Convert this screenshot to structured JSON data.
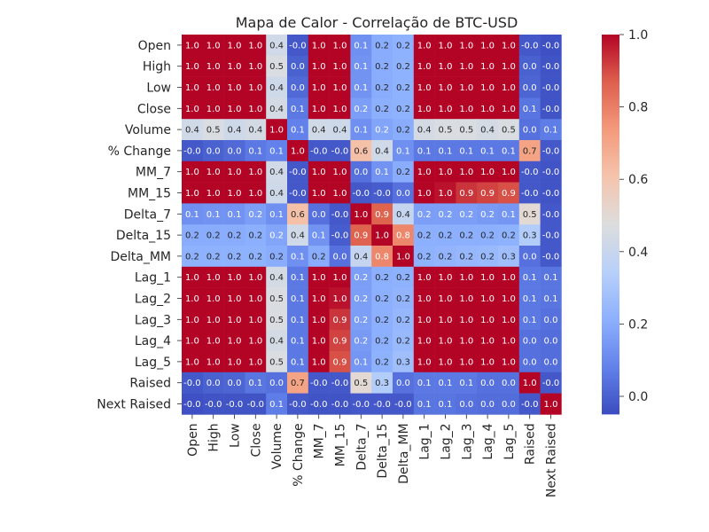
{
  "chart_data": {
    "type": "heatmap",
    "title": "Mapa de Calor - Correlação de BTC-USD",
    "variables": [
      "Open",
      "High",
      "Low",
      "Close",
      "Volume",
      "% Change",
      "MM_7",
      "MM_15",
      "Delta_7",
      "Delta_15",
      "Delta_MM",
      "Lag_1",
      "Lag_2",
      "Lag_3",
      "Lag_4",
      "Lag_5",
      "Raised",
      "Next Raised"
    ],
    "cell_labels": [
      [
        "1.0",
        "1.0",
        "1.0",
        "1.0",
        "0.4",
        "-0.0",
        "1.0",
        "1.0",
        "0.1",
        "0.2",
        "0.2",
        "1.0",
        "1.0",
        "1.0",
        "1.0",
        "1.0",
        "-0.0",
        "-0.0"
      ],
      [
        "1.0",
        "1.0",
        "1.0",
        "1.0",
        "0.5",
        "0.0",
        "1.0",
        "1.0",
        "0.1",
        "0.2",
        "0.2",
        "1.0",
        "1.0",
        "1.0",
        "1.0",
        "1.0",
        "0.0",
        "-0.0"
      ],
      [
        "1.0",
        "1.0",
        "1.0",
        "1.0",
        "0.4",
        "0.0",
        "1.0",
        "1.0",
        "0.1",
        "0.2",
        "0.2",
        "1.0",
        "1.0",
        "1.0",
        "1.0",
        "1.0",
        "0.0",
        "-0.0"
      ],
      [
        "1.0",
        "1.0",
        "1.0",
        "1.0",
        "0.4",
        "0.1",
        "1.0",
        "1.0",
        "0.2",
        "0.2",
        "0.2",
        "1.0",
        "1.0",
        "1.0",
        "1.0",
        "1.0",
        "0.1",
        "-0.0"
      ],
      [
        "0.4",
        "0.5",
        "0.4",
        "0.4",
        "1.0",
        "0.1",
        "0.4",
        "0.4",
        "0.1",
        "0.2",
        "0.2",
        "0.4",
        "0.5",
        "0.5",
        "0.4",
        "0.5",
        "0.0",
        "0.1"
      ],
      [
        "-0.0",
        "0.0",
        "0.0",
        "0.1",
        "0.1",
        "1.0",
        "-0.0",
        "-0.0",
        "0.6",
        "0.4",
        "0.1",
        "0.1",
        "0.1",
        "0.1",
        "0.1",
        "0.1",
        "0.7",
        "-0.0"
      ],
      [
        "1.0",
        "1.0",
        "1.0",
        "1.0",
        "0.4",
        "-0.0",
        "1.0",
        "1.0",
        "0.0",
        "0.1",
        "0.2",
        "1.0",
        "1.0",
        "1.0",
        "1.0",
        "1.0",
        "-0.0",
        "-0.0"
      ],
      [
        "1.0",
        "1.0",
        "1.0",
        "1.0",
        "0.4",
        "-0.0",
        "1.0",
        "1.0",
        "-0.0",
        "-0.0",
        "0.0",
        "1.0",
        "1.0",
        "0.9",
        "0.9",
        "0.9",
        "-0.0",
        "-0.0"
      ],
      [
        "0.1",
        "0.1",
        "0.1",
        "0.2",
        "0.1",
        "0.6",
        "0.0",
        "-0.0",
        "1.0",
        "0.9",
        "0.4",
        "0.2",
        "0.2",
        "0.2",
        "0.2",
        "0.1",
        "0.5",
        "-0.0"
      ],
      [
        "0.2",
        "0.2",
        "0.2",
        "0.2",
        "0.2",
        "0.4",
        "0.1",
        "-0.0",
        "0.9",
        "1.0",
        "0.8",
        "0.2",
        "0.2",
        "0.2",
        "0.2",
        "0.2",
        "0.3",
        "-0.0"
      ],
      [
        "0.2",
        "0.2",
        "0.2",
        "0.2",
        "0.2",
        "0.1",
        "0.2",
        "0.0",
        "0.4",
        "0.8",
        "1.0",
        "0.2",
        "0.2",
        "0.2",
        "0.2",
        "0.3",
        "0.0",
        "-0.0"
      ],
      [
        "1.0",
        "1.0",
        "1.0",
        "1.0",
        "0.4",
        "0.1",
        "1.0",
        "1.0",
        "0.2",
        "0.2",
        "0.2",
        "1.0",
        "1.0",
        "1.0",
        "1.0",
        "1.0",
        "0.1",
        "0.1"
      ],
      [
        "1.0",
        "1.0",
        "1.0",
        "1.0",
        "0.5",
        "0.1",
        "1.0",
        "1.0",
        "0.2",
        "0.2",
        "0.2",
        "1.0",
        "1.0",
        "1.0",
        "1.0",
        "1.0",
        "0.1",
        "0.1"
      ],
      [
        "1.0",
        "1.0",
        "1.0",
        "1.0",
        "0.5",
        "0.1",
        "1.0",
        "0.9",
        "0.2",
        "0.2",
        "0.2",
        "1.0",
        "1.0",
        "1.0",
        "1.0",
        "1.0",
        "0.1",
        "0.0"
      ],
      [
        "1.0",
        "1.0",
        "1.0",
        "1.0",
        "0.4",
        "0.1",
        "1.0",
        "0.9",
        "0.2",
        "0.2",
        "0.2",
        "1.0",
        "1.0",
        "1.0",
        "1.0",
        "1.0",
        "0.0",
        "0.0"
      ],
      [
        "1.0",
        "1.0",
        "1.0",
        "1.0",
        "0.5",
        "0.1",
        "1.0",
        "0.9",
        "0.1",
        "0.2",
        "0.3",
        "1.0",
        "1.0",
        "1.0",
        "1.0",
        "1.0",
        "0.0",
        "0.0"
      ],
      [
        "-0.0",
        "0.0",
        "0.0",
        "0.1",
        "0.0",
        "0.7",
        "-0.0",
        "-0.0",
        "0.5",
        "0.3",
        "0.0",
        "0.1",
        "0.1",
        "0.1",
        "0.0",
        "0.0",
        "1.0",
        "-0.0"
      ],
      [
        "-0.0",
        "-0.0",
        "-0.0",
        "-0.0",
        "0.1",
        "-0.0",
        "-0.0",
        "-0.0",
        "-0.0",
        "-0.0",
        "-0.0",
        "0.1",
        "0.1",
        "0.0",
        "0.0",
        "0.0",
        "-0.0",
        "1.0"
      ]
    ],
    "values": [
      [
        1.0,
        1.0,
        1.0,
        1.0,
        0.43,
        -0.02,
        1.0,
        1.0,
        0.12,
        0.2,
        0.22,
        1.0,
        1.0,
        1.0,
        1.0,
        1.0,
        -0.02,
        -0.04
      ],
      [
        1.0,
        1.0,
        1.0,
        1.0,
        0.46,
        0.0,
        1.0,
        1.0,
        0.13,
        0.2,
        0.22,
        1.0,
        1.0,
        1.0,
        1.0,
        1.0,
        0.0,
        -0.03
      ],
      [
        1.0,
        1.0,
        1.0,
        1.0,
        0.42,
        0.02,
        1.0,
        1.0,
        0.13,
        0.2,
        0.22,
        1.0,
        1.0,
        1.0,
        1.0,
        1.0,
        0.01,
        -0.03
      ],
      [
        1.0,
        1.0,
        1.0,
        1.0,
        0.44,
        0.06,
        1.0,
        1.0,
        0.16,
        0.21,
        0.22,
        1.0,
        1.0,
        1.0,
        1.0,
        1.0,
        0.05,
        -0.03
      ],
      [
        0.43,
        0.46,
        0.42,
        0.44,
        1.0,
        0.08,
        0.43,
        0.42,
        0.12,
        0.18,
        0.2,
        0.44,
        0.46,
        0.46,
        0.44,
        0.46,
        0.04,
        0.07
      ],
      [
        -0.02,
        0.0,
        0.02,
        0.06,
        0.08,
        1.0,
        -0.02,
        -0.02,
        0.62,
        0.43,
        0.12,
        0.06,
        0.06,
        0.06,
        0.06,
        0.06,
        0.71,
        -0.02
      ],
      [
        1.0,
        1.0,
        1.0,
        1.0,
        0.43,
        -0.02,
        1.0,
        1.0,
        0.04,
        0.13,
        0.2,
        1.0,
        1.0,
        1.0,
        1.0,
        1.0,
        -0.02,
        -0.03
      ],
      [
        1.0,
        1.0,
        1.0,
        1.0,
        0.42,
        -0.02,
        1.0,
        1.0,
        -0.02,
        -0.01,
        0.04,
        1.0,
        0.98,
        0.93,
        0.91,
        0.89,
        -0.02,
        -0.03
      ],
      [
        0.12,
        0.13,
        0.13,
        0.16,
        0.12,
        0.62,
        0.04,
        -0.02,
        1.0,
        0.86,
        0.39,
        0.16,
        0.16,
        0.16,
        0.15,
        0.14,
        0.5,
        -0.02
      ],
      [
        0.2,
        0.2,
        0.2,
        0.21,
        0.18,
        0.43,
        0.13,
        -0.01,
        0.86,
        1.0,
        0.78,
        0.21,
        0.21,
        0.21,
        0.21,
        0.22,
        0.33,
        -0.02
      ],
      [
        0.22,
        0.22,
        0.22,
        0.22,
        0.2,
        0.12,
        0.2,
        0.04,
        0.39,
        0.78,
        1.0,
        0.22,
        0.23,
        0.24,
        0.25,
        0.27,
        0.04,
        -0.02
      ],
      [
        1.0,
        1.0,
        1.0,
        1.0,
        0.44,
        0.06,
        1.0,
        1.0,
        0.16,
        0.21,
        0.22,
        1.0,
        1.0,
        1.0,
        1.0,
        1.0,
        0.06,
        0.05
      ],
      [
        1.0,
        1.0,
        1.0,
        1.0,
        0.46,
        0.06,
        1.0,
        0.98,
        0.16,
        0.21,
        0.23,
        1.0,
        1.0,
        1.0,
        1.0,
        1.0,
        0.06,
        0.05
      ],
      [
        1.0,
        1.0,
        1.0,
        1.0,
        0.46,
        0.06,
        1.0,
        0.93,
        0.16,
        0.21,
        0.24,
        1.0,
        1.0,
        1.0,
        1.0,
        1.0,
        0.06,
        0.04
      ],
      [
        1.0,
        1.0,
        1.0,
        1.0,
        0.44,
        0.06,
        1.0,
        0.91,
        0.15,
        0.21,
        0.25,
        1.0,
        1.0,
        1.0,
        1.0,
        1.0,
        0.04,
        0.03
      ],
      [
        1.0,
        1.0,
        1.0,
        1.0,
        0.46,
        0.06,
        1.0,
        0.89,
        0.14,
        0.22,
        0.27,
        1.0,
        1.0,
        1.0,
        1.0,
        1.0,
        0.04,
        0.03
      ],
      [
        -0.02,
        0.0,
        0.01,
        0.05,
        0.04,
        0.71,
        -0.02,
        -0.02,
        0.5,
        0.33,
        0.04,
        0.06,
        0.06,
        0.06,
        0.04,
        0.04,
        1.0,
        -0.02
      ],
      [
        -0.04,
        -0.03,
        -0.03,
        -0.03,
        0.07,
        -0.02,
        -0.03,
        -0.03,
        -0.02,
        -0.02,
        -0.02,
        0.05,
        0.05,
        0.04,
        0.03,
        0.03,
        -0.02,
        1.0
      ]
    ],
    "vmin": -0.05,
    "vmax": 1.0,
    "colormap": "coolwarm",
    "colorbar_ticks": [
      0.0,
      0.2,
      0.4,
      0.6,
      0.8,
      1.0
    ],
    "colorbar_tick_labels": [
      "0.0",
      "0.2",
      "0.4",
      "0.6",
      "0.8",
      "1.0"
    ],
    "colors": {
      "low": "#3b4cc0",
      "mid": "#dddddd",
      "high": "#b40426"
    }
  }
}
